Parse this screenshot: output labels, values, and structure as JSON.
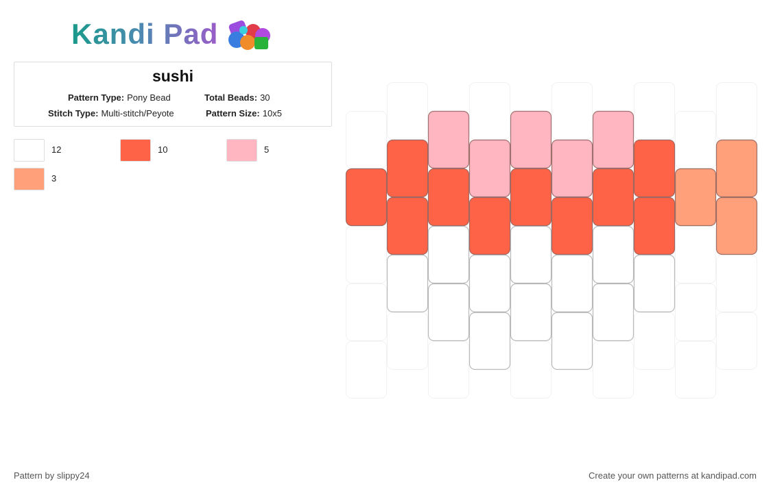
{
  "header": {
    "logo": "Kandi Pad"
  },
  "pattern": {
    "title": "sushi",
    "info": [
      {
        "label": "Pattern Type:",
        "value": "Pony Bead"
      },
      {
        "label": "Total Beads:",
        "value": 30
      },
      {
        "label": "Stitch Type:",
        "value": "Multi-stitch/Peyote"
      },
      {
        "label": "Pattern Size:",
        "value": "10x5"
      }
    ]
  },
  "legend": [
    {
      "color": "#ffffff",
      "count": 12
    },
    {
      "color": "#ff6347",
      "count": 10
    },
    {
      "color": "#ffb6c1",
      "count": 5
    },
    {
      "color": "#ffa07a",
      "count": 3
    }
  ],
  "grid": [
    [
      null,
      "#ff6347",
      null,
      null,
      null
    ],
    [
      null,
      "#ff6347",
      "#ff6347",
      "#ffffff",
      null
    ],
    [
      "#ffb6c1",
      "#ff6347",
      "#ffffff",
      "#ffffff",
      null
    ],
    [
      null,
      "#ffb6c1",
      "#ff6347",
      "#ffffff",
      "#ffffff"
    ],
    [
      "#ffb6c1",
      "#ff6347",
      "#ffffff",
      "#ffffff",
      null
    ],
    [
      null,
      "#ffb6c1",
      "#ff6347",
      "#ffffff",
      "#ffffff"
    ],
    [
      "#ffb6c1",
      "#ff6347",
      "#ffffff",
      "#ffffff",
      null
    ],
    [
      null,
      "#ff6347",
      "#ff6347",
      "#ffffff",
      null
    ],
    [
      null,
      "#ffa07a",
      null,
      null,
      null
    ],
    [
      null,
      "#ffa07a",
      "#ffa07a",
      null,
      null
    ]
  ],
  "footer": {
    "credit": "Pattern by slippy24",
    "promo": "Create your own patterns at kandipad.com"
  }
}
